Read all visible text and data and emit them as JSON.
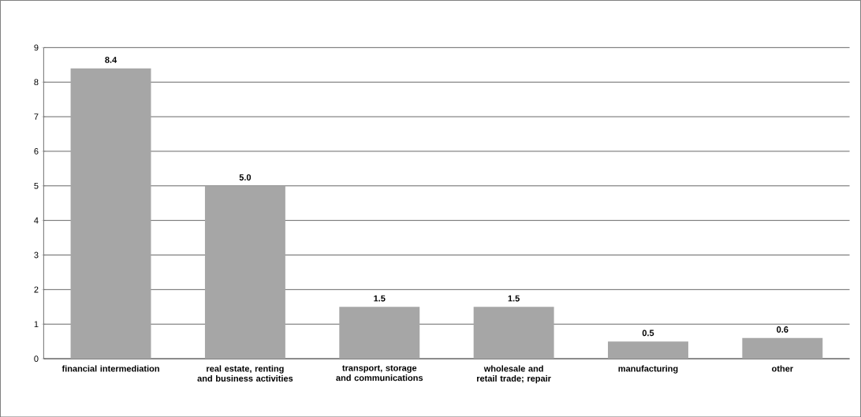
{
  "chart_data": {
    "type": "bar",
    "categories": [
      "financial intermediation",
      "real estate, renting and business activities",
      "transport, storage and communications",
      "wholesale and retail trade; repair",
      "manufacturing",
      "other"
    ],
    "values": [
      8.4,
      5.0,
      1.5,
      1.5,
      0.5,
      0.6
    ],
    "value_labels": [
      "8.4",
      "5.0",
      "1.5",
      "1.5",
      "0.5",
      "0.6"
    ],
    "color": "#a6a6a6",
    "ylim": [
      0,
      9
    ],
    "yticks": [
      0,
      1,
      2,
      3,
      4,
      5,
      6,
      7,
      8,
      9
    ],
    "grid": "y"
  }
}
